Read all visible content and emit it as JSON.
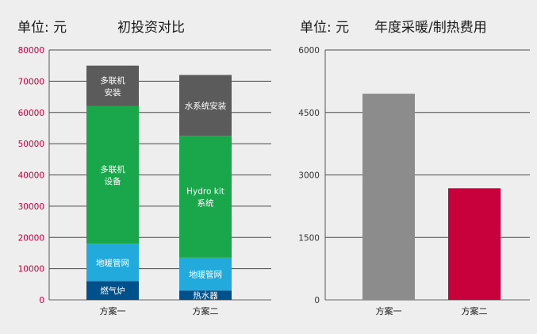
{
  "chart_data": [
    {
      "type": "bar",
      "stacked": true,
      "unit_label": "单位: 元",
      "title": "初投资对比",
      "categories": [
        "方案一",
        "方案二"
      ],
      "ylim": [
        0,
        80000
      ],
      "yticks": [
        "0",
        "10000",
        "20000",
        "30000",
        "40000",
        "50000",
        "60000",
        "70000",
        "80000"
      ],
      "ytick_values": [
        0,
        10000,
        20000,
        30000,
        40000,
        50000,
        60000,
        70000,
        80000
      ],
      "tick_color": "#c8003c",
      "grid": true,
      "stacks": [
        [
          {
            "name": "燃气炉",
            "value": 6000,
            "color": "#00508c"
          },
          {
            "name": "地暖管网",
            "value": 12000,
            "color": "#22aadd"
          },
          {
            "name": "多联机\n设备",
            "value": 44000,
            "color": "#1aa64b"
          },
          {
            "name": "多联机\n安装",
            "value": 13000,
            "color": "#5b5b5b"
          }
        ],
        [
          {
            "name": "热水器",
            "value": 3000,
            "color": "#00508c"
          },
          {
            "name": "地暖管网",
            "value": 10500,
            "color": "#22aadd"
          },
          {
            "name": "Hydro kit\n系统",
            "value": 39000,
            "color": "#1aa64b"
          },
          {
            "name": "水系统安装",
            "value": 19500,
            "color": "#5b5b5b"
          }
        ]
      ]
    },
    {
      "type": "bar",
      "unit_label": "单位: 元",
      "title": "年度采暖/制热费用",
      "categories": [
        "方案一",
        "方案二"
      ],
      "values": [
        4950,
        2680
      ],
      "colors": [
        "#8c8c8c",
        "#c8003c"
      ],
      "ylim": [
        0,
        6000
      ],
      "yticks": [
        "0",
        "1500",
        "3000",
        "4500",
        "6000"
      ],
      "ytick_values": [
        0,
        1500,
        3000,
        4500,
        6000
      ],
      "tick_color": "#333333",
      "grid": true
    }
  ]
}
